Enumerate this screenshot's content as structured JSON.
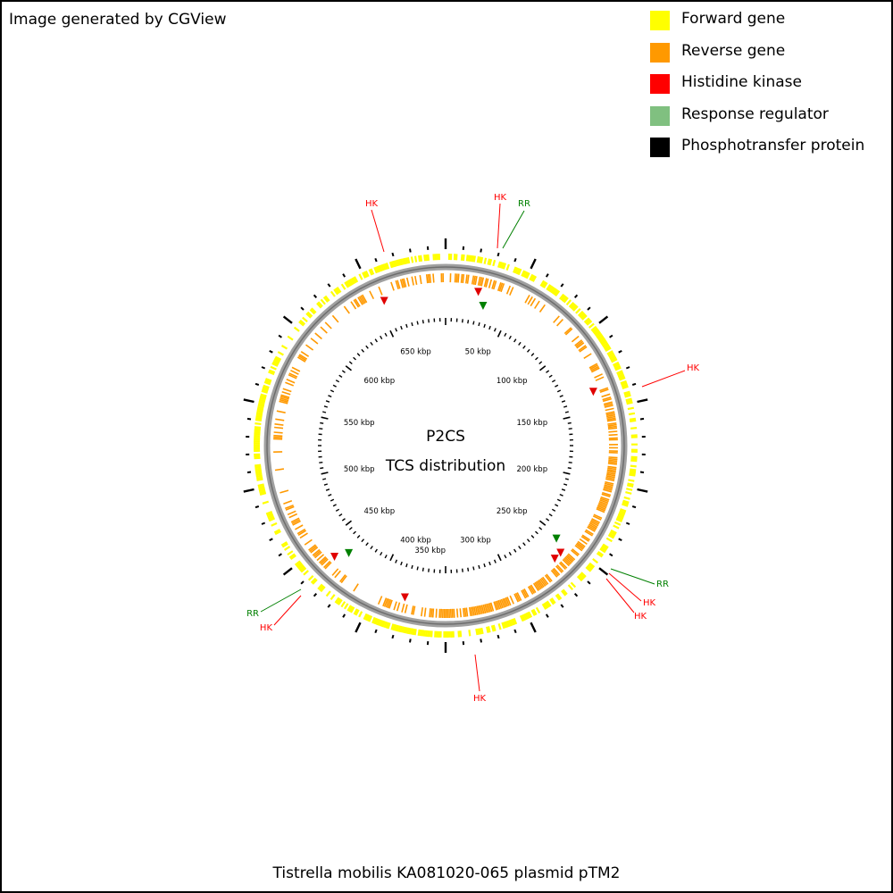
{
  "header": {
    "generator": "Image generated by CGView"
  },
  "legend": {
    "items": [
      {
        "label": "Forward gene",
        "color": "#ffff00"
      },
      {
        "label": "Reverse gene",
        "color": "#ff9900"
      },
      {
        "label": "Histidine kinase",
        "color": "#ff0000"
      },
      {
        "label": "Response regulator",
        "color": "#80c080"
      },
      {
        "label": "Phosphotransfer protein",
        "color": "#000000"
      }
    ]
  },
  "map": {
    "title_line1": "P2CS",
    "title_line2": "TCS distribution",
    "caption": "Tistrella mobilis KA081020-065 plasmid pTM2",
    "tick_labels": [
      "50 kbp",
      "100 kbp",
      "150 kbp",
      "200 kbp",
      "250 kbp",
      "300 kbp",
      "350 kbp",
      "400 kbp",
      "450 kbp",
      "500 kbp",
      "550 kbp",
      "600 kbp",
      "650 kbp"
    ],
    "feature_labels": {
      "hk": "HK",
      "rr": "RR"
    },
    "colors": {
      "hk_label": "#ff0000",
      "rr_label": "#008000",
      "backbone": "#808080"
    }
  }
}
